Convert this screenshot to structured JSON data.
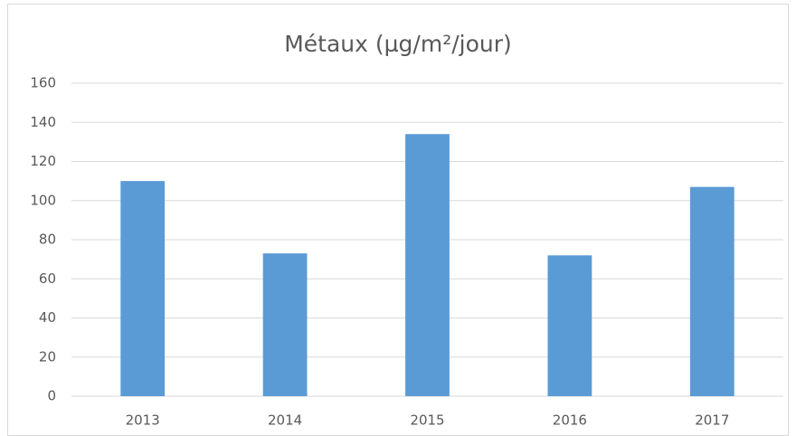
{
  "chart_data": {
    "type": "bar",
    "title": "Métaux (µg/m²/jour)",
    "categories": [
      "2013",
      "2014",
      "2015",
      "2016",
      "2017"
    ],
    "values": [
      110,
      73,
      134,
      72,
      107
    ],
    "color": "#5b9bd5",
    "ylim": [
      0,
      160
    ],
    "yticks": [
      0,
      20,
      40,
      60,
      80,
      100,
      120,
      140,
      160
    ],
    "grid": true
  }
}
